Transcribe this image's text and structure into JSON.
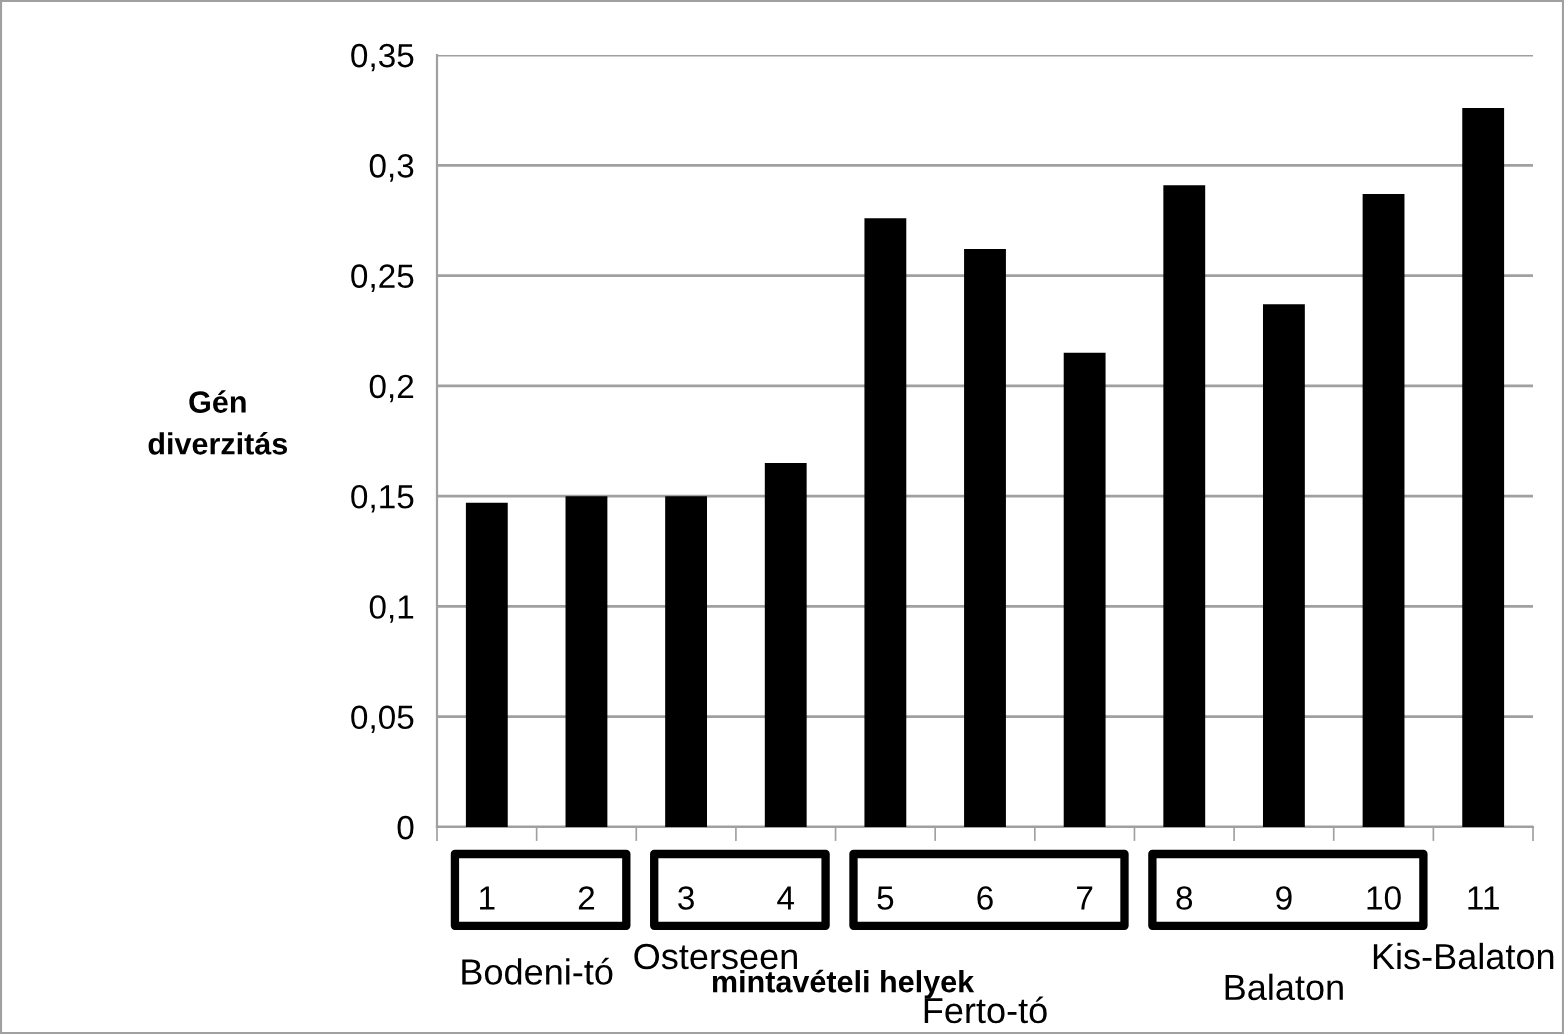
{
  "chart_data": {
    "type": "bar",
    "xlabel": "mintavételi helyek",
    "ylabel": "Gén\ndiverzitás",
    "categories": [
      "1",
      "2",
      "3",
      "4",
      "5",
      "6",
      "7",
      "8",
      "9",
      "10",
      "11"
    ],
    "values": [
      0.147,
      0.15,
      0.15,
      0.165,
      0.276,
      0.262,
      0.215,
      0.291,
      0.237,
      0.287,
      0.326
    ],
    "color": "#000000",
    "ylim": [
      0,
      0.35
    ],
    "yticks": [
      0,
      {
        "value": 0.05,
        "label": "0,05"
      },
      {
        "value": 0.1,
        "label": "0,1"
      },
      {
        "value": 0.15,
        "label": "0,15"
      },
      {
        "value": 0.2,
        "label": "0,2"
      },
      {
        "value": 0.25,
        "label": "0,25"
      },
      {
        "value": 0.3,
        "label": "0,3"
      },
      {
        "value": 0.35,
        "label": "0,35"
      }
    ],
    "grid": "y",
    "annotations": [
      "Bodeni-tó",
      "Osterseen",
      "Ferto-tó",
      "Balaton",
      "Kis-Balaton"
    ]
  }
}
